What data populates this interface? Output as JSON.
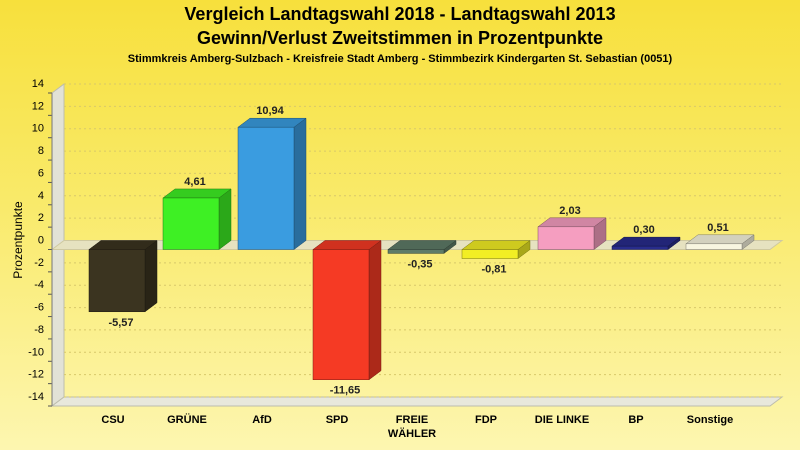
{
  "chart_data": {
    "type": "bar",
    "title": "Vergleich Landtagswahl 2018 - Landtagswahl 2013",
    "subtitle": "Gewinn/Verlust Zweitstimmen in Prozentpunkte",
    "subsubtitle": "Stimmkreis Amberg-Sulzbach - Kreisfreie Stadt Amberg - Stimmbezirk Kindergarten St. Sebastian (0051)",
    "ylabel": "Prozentpunkte",
    "xlabel": "",
    "ylim": [
      -14,
      14
    ],
    "yticks": [
      14,
      12,
      10,
      8,
      6,
      4,
      2,
      0,
      -2,
      -4,
      -6,
      -8,
      -10,
      -12,
      -14
    ],
    "grid": true,
    "categories": [
      "CSU",
      "GRÜNE",
      "AfD",
      "SPD",
      "FREIE WÄHLER",
      "FDP",
      "DIE LINKE",
      "BP",
      "Sonstige"
    ],
    "values": [
      -5.57,
      4.61,
      10.94,
      -11.65,
      -0.35,
      -0.81,
      2.03,
      0.3,
      0.51
    ],
    "value_labels": [
      "-5,57",
      "4,61",
      "10,94",
      "-11,65",
      "-0,35",
      "-0,81",
      "2,03",
      "0,30",
      "0,51"
    ],
    "colors": [
      "#3b3420",
      "#3ef024",
      "#3a9ce0",
      "#f53a24",
      "#5e7c68",
      "#f2ee24",
      "#f59ec0",
      "#282c8c",
      "#f8f6e0"
    ]
  }
}
